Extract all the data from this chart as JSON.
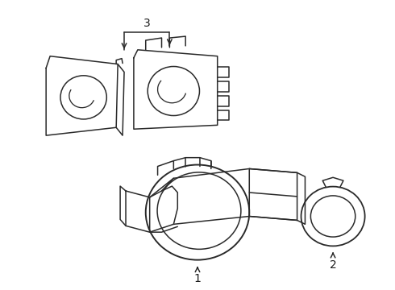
{
  "bg_color": "#ffffff",
  "line_color": "#2a2a2a",
  "line_width": 1.1,
  "label_fontsize": 10,
  "label_color": "#1a1a1a"
}
